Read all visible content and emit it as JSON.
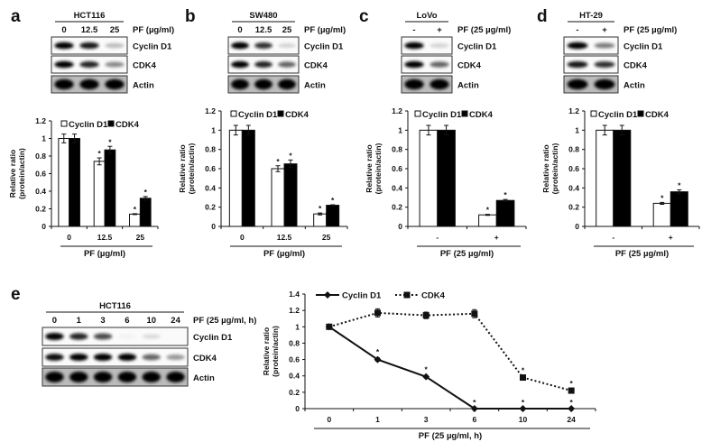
{
  "panels": [
    {
      "letter": "a",
      "cell_line": "HCT116",
      "treatment_label": "PF (µg/ml)",
      "lanes": [
        "0",
        "12.5",
        "25"
      ],
      "rows": [
        "Cyclin D1",
        "CDK4",
        "Actin"
      ]
    },
    {
      "letter": "b",
      "cell_line": "SW480",
      "treatment_label": "PF (µg/ml)",
      "lanes": [
        "0",
        "12.5",
        "25"
      ],
      "rows": [
        "Cyclin D1",
        "CDK4",
        "Actin"
      ]
    },
    {
      "letter": "c",
      "cell_line": "LoVo",
      "treatment_label": "PF (25 µg/ml)",
      "lanes": [
        "-",
        "+"
      ],
      "rows": [
        "Cyclin D1",
        "CDK4",
        "Actin"
      ]
    },
    {
      "letter": "d",
      "cell_line": "HT-29",
      "treatment_label": "PF (25 µg/ml)",
      "lanes": [
        "-",
        "+"
      ],
      "rows": [
        "Cyclin D1",
        "CDK4",
        "Actin"
      ]
    },
    {
      "letter": "e",
      "cell_line": "HCT116",
      "treatment_label": "PF (25 µg/ml, h)",
      "lanes": [
        "0",
        "1",
        "3",
        "6",
        "10",
        "24"
      ],
      "rows": [
        "Cyclin D1",
        "CDK4",
        "Actin"
      ]
    }
  ],
  "chart_data": [
    {
      "panel": "a",
      "type": "bar",
      "ylabel": [
        "Relative ratio",
        "(protein/actin)"
      ],
      "xlabel": "PF (µg/ml)",
      "categories": [
        "0",
        "12.5",
        "25"
      ],
      "ylim": [
        0,
        1.2
      ],
      "yticks": [
        "0",
        "0.2",
        "0.4",
        "0.6",
        "0.8",
        "1",
        "1.2"
      ],
      "legend": "top",
      "series": [
        {
          "name": "Cyclin D1",
          "fill": "#ffffff",
          "values": [
            1.0,
            0.74,
            0.14
          ],
          "errors": [
            0.05,
            0.04,
            0.005
          ],
          "marks": [
            "",
            "*",
            "*"
          ]
        },
        {
          "name": "CDK4",
          "fill": "#000000",
          "values": [
            1.0,
            0.87,
            0.32
          ],
          "errors": [
            0.05,
            0.04,
            0.02
          ],
          "marks": [
            "",
            "*",
            "*"
          ]
        }
      ]
    },
    {
      "panel": "b",
      "type": "bar",
      "ylabel": [
        "Relative ratio",
        "(protein/actin)"
      ],
      "xlabel": "PF (µg/ml)",
      "categories": [
        "0",
        "12.5",
        "25"
      ],
      "ylim": [
        0,
        1.2
      ],
      "yticks": [
        "0",
        "0.2",
        "0.4",
        "0.6",
        "0.8",
        "1",
        "1.2"
      ],
      "legend": "top",
      "series": [
        {
          "name": "Cyclin D1",
          "fill": "#ffffff",
          "values": [
            1.0,
            0.6,
            0.13
          ],
          "errors": [
            0.05,
            0.03,
            0.01
          ],
          "marks": [
            "",
            "*",
            "*"
          ]
        },
        {
          "name": "CDK4",
          "fill": "#000000",
          "values": [
            1.0,
            0.65,
            0.22
          ],
          "errors": [
            0.05,
            0.04,
            0.005
          ],
          "marks": [
            "",
            "*",
            "*"
          ]
        }
      ]
    },
    {
      "panel": "c",
      "type": "bar",
      "ylabel": [
        "Relative ratio",
        "(protein/actin)"
      ],
      "xlabel": "PF (25 µg/ml)",
      "categories": [
        "-",
        "+"
      ],
      "ylim": [
        0,
        1.2
      ],
      "yticks": [
        "0",
        "0.2",
        "0.4",
        "0.6",
        "0.8",
        "1",
        "1.2"
      ],
      "legend": "top",
      "series": [
        {
          "name": "Cyclin D1",
          "fill": "#ffffff",
          "values": [
            1.0,
            0.12
          ],
          "errors": [
            0.05,
            0.005
          ],
          "marks": [
            "",
            "*"
          ]
        },
        {
          "name": "CDK4",
          "fill": "#000000",
          "values": [
            1.0,
            0.27
          ],
          "errors": [
            0.05,
            0.01
          ],
          "marks": [
            "",
            "*"
          ]
        }
      ]
    },
    {
      "panel": "d",
      "type": "bar",
      "ylabel": [
        "Relative ratio",
        "(protein/actin)"
      ],
      "xlabel": "PF (25 µg/ml)",
      "categories": [
        "-",
        "+"
      ],
      "ylim": [
        0,
        1.2
      ],
      "yticks": [
        "0",
        "0.2",
        "0.4",
        "0.6",
        "0.8",
        "1",
        "1.2"
      ],
      "legend": "top",
      "series": [
        {
          "name": "Cyclin D1",
          "fill": "#ffffff",
          "values": [
            1.0,
            0.24
          ],
          "errors": [
            0.05,
            0.01
          ],
          "marks": [
            "",
            "*"
          ]
        },
        {
          "name": "CDK4",
          "fill": "#000000",
          "values": [
            1.0,
            0.36
          ],
          "errors": [
            0.05,
            0.02
          ],
          "marks": [
            "",
            "*"
          ]
        }
      ]
    },
    {
      "panel": "e",
      "type": "line",
      "ylabel": [
        "Relative ratio",
        "(protein/actin)"
      ],
      "xlabel": "PF (25 µg/ml, h)",
      "categories": [
        "0",
        "1",
        "3",
        "6",
        "10",
        "24"
      ],
      "ylim": [
        0,
        1.4
      ],
      "yticks": [
        "0",
        "0.2",
        "0.4",
        "0.6",
        "0.8",
        "1",
        "1.2",
        "1.4"
      ],
      "legend": "top",
      "series": [
        {
          "name": "Cyclin D1",
          "style": "solid",
          "marker": "diamond",
          "values": [
            1.0,
            0.6,
            0.39,
            0,
            0,
            0
          ],
          "errors": [
            0.03,
            0.02,
            0.01,
            0,
            0,
            0
          ],
          "marks": [
            "",
            "*",
            "*",
            "*",
            "*",
            "*"
          ]
        },
        {
          "name": "CDK4",
          "style": "dotted",
          "marker": "square",
          "values": [
            1.0,
            1.17,
            1.14,
            1.16,
            0.38,
            0.22
          ],
          "errors": [
            0.03,
            0.05,
            0.04,
            0.05,
            0.01,
            0.01
          ],
          "marks": [
            "",
            "",
            "",
            "",
            "*",
            "*"
          ]
        }
      ]
    }
  ]
}
